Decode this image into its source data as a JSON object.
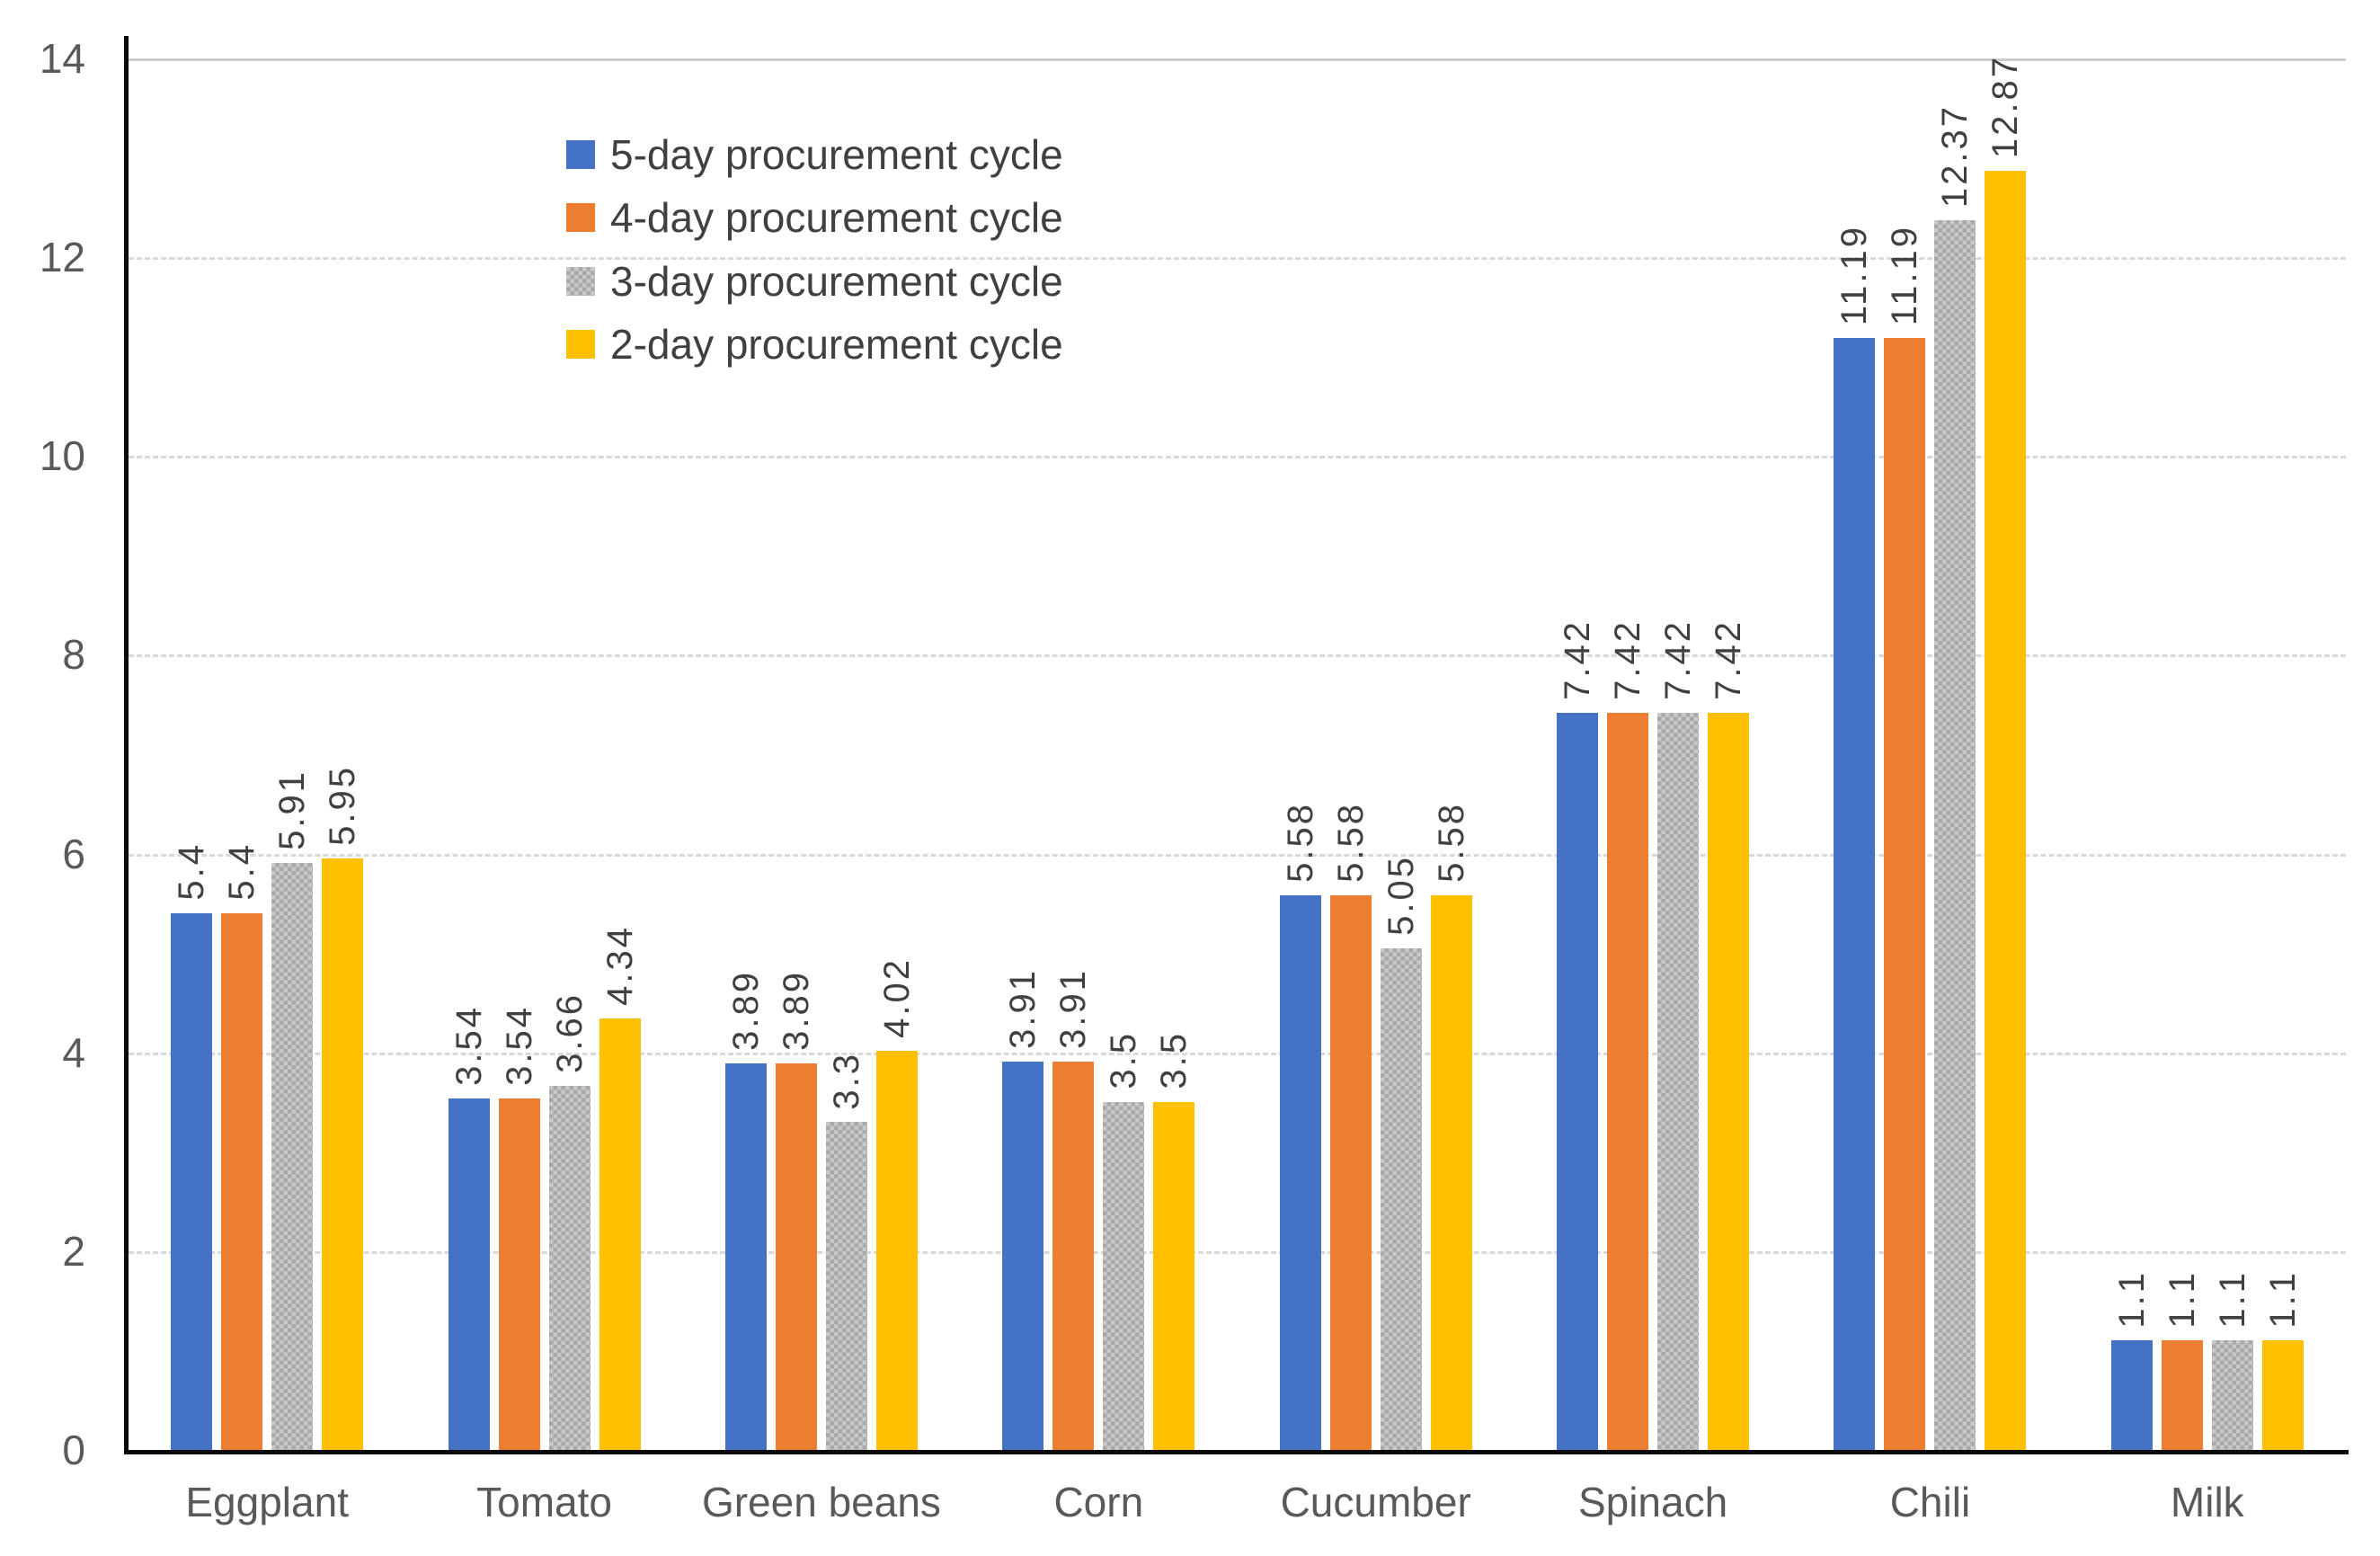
{
  "chart_data": {
    "type": "bar",
    "title": "",
    "xlabel": "",
    "ylabel": "",
    "categories": [
      "Eggplant",
      "Tomato",
      "Green beans",
      "Corn",
      "Cucumber",
      "Spinach",
      "Chili",
      "Milk"
    ],
    "series": [
      {
        "name": "5-day procurement cycle",
        "color": "#4472C4",
        "pattern": "solid",
        "values": [
          5.4,
          3.54,
          3.89,
          3.91,
          5.58,
          7.42,
          11.19,
          1.1
        ]
      },
      {
        "name": "4-day procurement cycle",
        "color": "#ED7D31",
        "pattern": "solid",
        "values": [
          5.4,
          3.54,
          3.89,
          3.91,
          5.58,
          7.42,
          11.19,
          1.1
        ]
      },
      {
        "name": "3-day procurement cycle",
        "color": "#B5B5B5",
        "pattern": "checkerboard",
        "values": [
          5.91,
          3.66,
          3.3,
          3.5,
          5.05,
          7.42,
          12.37,
          1.1
        ]
      },
      {
        "name": "2-day procurement cycle",
        "color": "#FFC000",
        "pattern": "solid",
        "values": [
          5.95,
          4.34,
          4.02,
          3.5,
          5.58,
          7.42,
          12.87,
          1.1
        ]
      }
    ],
    "ylim": [
      0,
      14
    ],
    "yticks": [
      0,
      2,
      4,
      6,
      8,
      10,
      12,
      14
    ],
    "grid": "horizontal dashed gridlines, solid line at top (14)",
    "data_labels": "shown above bars, rotated 90 degrees",
    "legend_position": "inside top-left",
    "colors": {
      "axis_line": "#0b0b0b",
      "gridline": "#d9d9d9",
      "axis_tick_text": "#595959",
      "value_label_text": "#404040"
    }
  }
}
